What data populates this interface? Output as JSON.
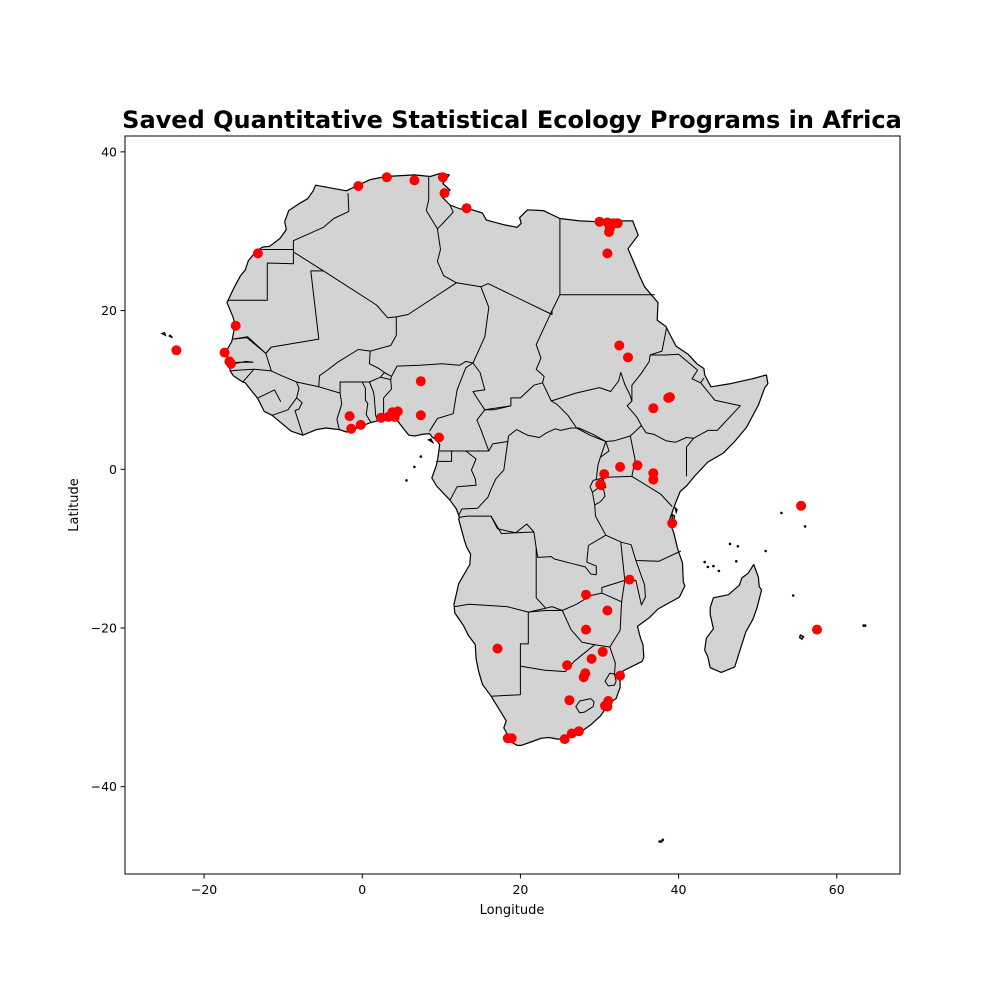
{
  "chart_data": {
    "type": "scatter",
    "title": "Saved Quantitative Statistical Ecology Programs in Africa",
    "xlabel": "Longitude",
    "ylabel": "Latitude",
    "xlim": [
      -30,
      68
    ],
    "ylim": [
      -51,
      42
    ],
    "xticks": [
      -20,
      0,
      20,
      40,
      60
    ],
    "yticks": [
      -40,
      -20,
      0,
      20,
      40
    ],
    "grid": false,
    "basemap": "Africa country boundaries (light grey fill, black outlines)",
    "colors": {
      "land": "#d3d3d3",
      "points": "#ff0000",
      "outline": "#000000"
    },
    "points": [
      {
        "lon": -0.5,
        "lat": 35.7
      },
      {
        "lon": 3.1,
        "lat": 36.8
      },
      {
        "lon": 6.6,
        "lat": 36.4
      },
      {
        "lon": 10.2,
        "lat": 36.8
      },
      {
        "lon": 10.4,
        "lat": 34.8
      },
      {
        "lon": 13.2,
        "lat": 32.9
      },
      {
        "lon": 30.0,
        "lat": 31.2
      },
      {
        "lon": 31.0,
        "lat": 31.1
      },
      {
        "lon": 31.8,
        "lat": 31.0
      },
      {
        "lon": 32.3,
        "lat": 31.0
      },
      {
        "lon": 31.3,
        "lat": 30.3
      },
      {
        "lon": 31.2,
        "lat": 29.9
      },
      {
        "lon": 31.0,
        "lat": 27.2
      },
      {
        "lon": -13.2,
        "lat": 27.2
      },
      {
        "lon": -16.0,
        "lat": 18.1
      },
      {
        "lon": -23.5,
        "lat": 15.0
      },
      {
        "lon": -17.4,
        "lat": 14.7
      },
      {
        "lon": -16.8,
        "lat": 13.6
      },
      {
        "lon": -16.6,
        "lat": 13.3
      },
      {
        "lon": 32.5,
        "lat": 15.6
      },
      {
        "lon": 33.6,
        "lat": 14.1
      },
      {
        "lon": 38.7,
        "lat": 9.0
      },
      {
        "lon": 38.9,
        "lat": 9.1
      },
      {
        "lon": 36.8,
        "lat": 7.7
      },
      {
        "lon": 7.4,
        "lat": 11.1
      },
      {
        "lon": -1.6,
        "lat": 6.7
      },
      {
        "lon": -1.4,
        "lat": 5.1
      },
      {
        "lon": -0.2,
        "lat": 5.6
      },
      {
        "lon": 2.4,
        "lat": 6.5
      },
      {
        "lon": 3.3,
        "lat": 6.6
      },
      {
        "lon": 3.8,
        "lat": 7.2
      },
      {
        "lon": 4.1,
        "lat": 6.6
      },
      {
        "lon": 4.5,
        "lat": 7.3
      },
      {
        "lon": 7.4,
        "lat": 6.8
      },
      {
        "lon": 9.7,
        "lat": 4.0
      },
      {
        "lon": 30.6,
        "lat": -0.6
      },
      {
        "lon": 30.1,
        "lat": -1.9
      },
      {
        "lon": 30.2,
        "lat": -2.0
      },
      {
        "lon": 32.6,
        "lat": 0.3
      },
      {
        "lon": 34.8,
        "lat": 0.5
      },
      {
        "lon": 36.8,
        "lat": -0.5
      },
      {
        "lon": 36.8,
        "lat": -1.3
      },
      {
        "lon": 39.2,
        "lat": -6.8
      },
      {
        "lon": 55.5,
        "lat": -4.6
      },
      {
        "lon": 57.5,
        "lat": -20.2
      },
      {
        "lon": 28.3,
        "lat": -15.8
      },
      {
        "lon": 33.8,
        "lat": -13.9
      },
      {
        "lon": 31.0,
        "lat": -17.8
      },
      {
        "lon": 28.3,
        "lat": -20.2
      },
      {
        "lon": 17.1,
        "lat": -22.6
      },
      {
        "lon": 25.9,
        "lat": -24.7
      },
      {
        "lon": 29.0,
        "lat": -23.9
      },
      {
        "lon": 30.4,
        "lat": -23.0
      },
      {
        "lon": 28.2,
        "lat": -25.7
      },
      {
        "lon": 28.0,
        "lat": -26.2
      },
      {
        "lon": 32.6,
        "lat": -26.0
      },
      {
        "lon": 26.2,
        "lat": -29.1
      },
      {
        "lon": 31.0,
        "lat": -29.9
      },
      {
        "lon": 30.7,
        "lat": -29.8
      },
      {
        "lon": 31.1,
        "lat": -29.2
      },
      {
        "lon": 18.4,
        "lat": -33.9
      },
      {
        "lon": 18.9,
        "lat": -33.9
      },
      {
        "lon": 25.6,
        "lat": -34.0
      },
      {
        "lon": 26.5,
        "lat": -33.3
      },
      {
        "lon": 27.4,
        "lat": -33.0
      }
    ]
  }
}
